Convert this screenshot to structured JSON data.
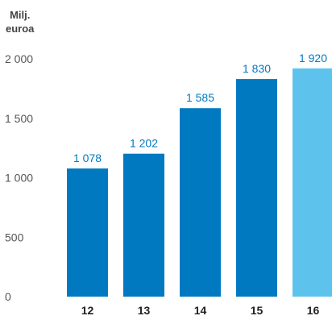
{
  "chart_data": {
    "type": "bar",
    "ylabel_line1": "Milj.",
    "ylabel_line2": "euroa",
    "categories": [
      "12",
      "13",
      "14",
      "15",
      "16"
    ],
    "values": [
      1078,
      1202,
      1585,
      1830,
      1920
    ],
    "value_labels": [
      "1 078",
      "1 202",
      "1 585",
      "1 830",
      "1 920"
    ],
    "yticks": [
      0,
      500,
      1000,
      1500,
      2000
    ],
    "ytick_labels": [
      "0",
      "500",
      "1 000",
      "1 500",
      "2 000"
    ],
    "ylim": [
      0,
      2000
    ],
    "grid": false,
    "colors": {
      "bar": "#0079c1",
      "bar_highlight": "#5ec3ec",
      "value_label": "#0079c1",
      "tick_label": "#555555",
      "category_label": "#222222"
    },
    "highlight_index": 4
  }
}
